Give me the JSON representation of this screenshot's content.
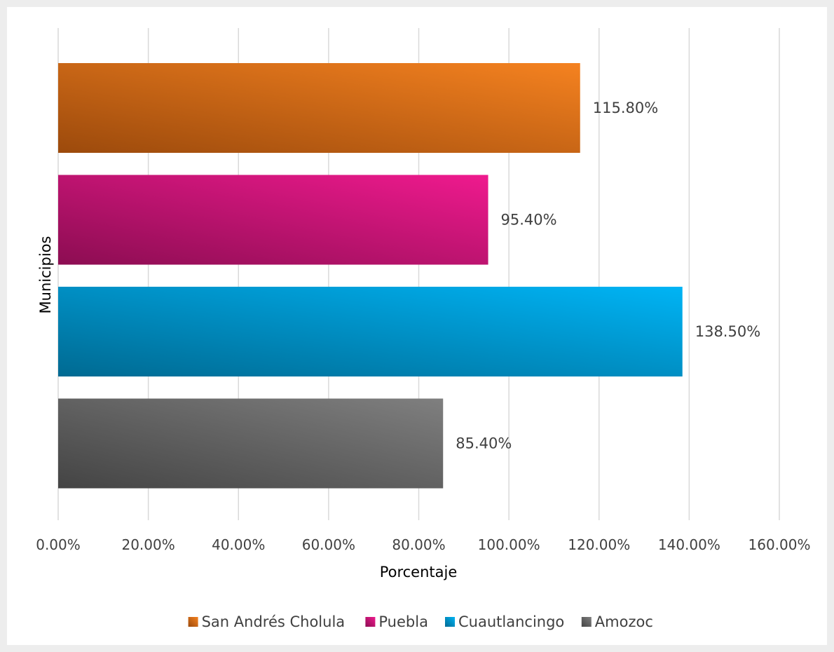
{
  "chart_data": {
    "type": "bar",
    "orientation": "horizontal",
    "xlabel": "Porcentaje",
    "ylabel": "Municipios",
    "xlim": [
      0,
      160
    ],
    "x_ticks": [
      "0.00%",
      "20.00%",
      "40.00%",
      "60.00%",
      "80.00%",
      "100.00%",
      "120.00%",
      "140.00%",
      "160.00%"
    ],
    "grid": true,
    "legend_position": "bottom",
    "series": [
      {
        "name": "San Andrés Cholula",
        "value": 115.8,
        "label": "115.80%",
        "color": "#f58220",
        "color_dark": "#9c4a0c"
      },
      {
        "name": "Puebla",
        "value": 95.4,
        "label": "95.40%",
        "color": "#ef1a8e",
        "color_dark": "#8c0d52"
      },
      {
        "name": "Cuautlancingo",
        "value": 138.5,
        "label": "138.50%",
        "color": "#00b4f5",
        "color_dark": "#006a92"
      },
      {
        "name": "Amozoc",
        "value": 85.4,
        "label": "85.40%",
        "color": "#7f7f7f",
        "color_dark": "#444444"
      }
    ]
  }
}
